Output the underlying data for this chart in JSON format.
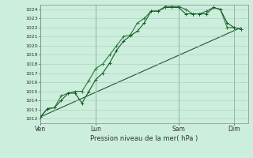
{
  "title": "",
  "xlabel": "Pression niveau de la mer( hPa )",
  "ylabel": "",
  "bg_color": "#cceedd",
  "grid_color": "#aaccbb",
  "line_color_dark": "#1a5c2a",
  "line_color_light": "#2d7a3a",
  "ylim": [
    1011.5,
    1024.5
  ],
  "yticks": [
    1012,
    1013,
    1014,
    1015,
    1016,
    1017,
    1018,
    1019,
    1020,
    1021,
    1022,
    1023,
    1024
  ],
  "day_labels": [
    "Ven",
    "Lun",
    "Sam",
    "Dim"
  ],
  "day_positions": [
    0,
    48,
    120,
    168
  ],
  "xlim": [
    0,
    180
  ],
  "series1": [
    [
      0,
      1012.2
    ],
    [
      6,
      1013.1
    ],
    [
      12,
      1013.2
    ],
    [
      18,
      1014.0
    ],
    [
      24,
      1014.8
    ],
    [
      30,
      1014.8
    ],
    [
      36,
      1013.7
    ],
    [
      42,
      1015.0
    ],
    [
      48,
      1016.3
    ],
    [
      54,
      1017.0
    ],
    [
      60,
      1018.1
    ],
    [
      66,
      1019.5
    ],
    [
      72,
      1020.5
    ],
    [
      78,
      1021.1
    ],
    [
      84,
      1021.6
    ],
    [
      90,
      1022.5
    ],
    [
      96,
      1023.8
    ],
    [
      102,
      1023.8
    ],
    [
      108,
      1024.2
    ],
    [
      114,
      1024.2
    ],
    [
      120,
      1024.2
    ],
    [
      126,
      1023.5
    ],
    [
      132,
      1023.5
    ],
    [
      138,
      1023.5
    ],
    [
      144,
      1023.5
    ],
    [
      150,
      1024.2
    ],
    [
      156,
      1024.0
    ],
    [
      162,
      1022.5
    ],
    [
      168,
      1022.0
    ],
    [
      174,
      1021.8
    ]
  ],
  "series2": [
    [
      0,
      1012.2
    ],
    [
      6,
      1013.1
    ],
    [
      12,
      1013.2
    ],
    [
      18,
      1014.5
    ],
    [
      24,
      1014.8
    ],
    [
      30,
      1015.0
    ],
    [
      36,
      1015.0
    ],
    [
      42,
      1016.2
    ],
    [
      48,
      1017.5
    ],
    [
      54,
      1018.0
    ],
    [
      60,
      1019.0
    ],
    [
      66,
      1020.0
    ],
    [
      72,
      1021.0
    ],
    [
      78,
      1021.2
    ],
    [
      84,
      1022.5
    ],
    [
      90,
      1023.0
    ],
    [
      96,
      1023.8
    ],
    [
      102,
      1023.8
    ],
    [
      108,
      1024.3
    ],
    [
      114,
      1024.3
    ],
    [
      120,
      1024.3
    ],
    [
      126,
      1024.0
    ],
    [
      132,
      1023.5
    ],
    [
      138,
      1023.5
    ],
    [
      144,
      1023.8
    ],
    [
      150,
      1024.2
    ],
    [
      156,
      1024.0
    ],
    [
      162,
      1022.0
    ],
    [
      168,
      1022.0
    ],
    [
      174,
      1021.8
    ]
  ],
  "series3": [
    [
      0,
      1012.2
    ],
    [
      174,
      1022.0
    ]
  ]
}
